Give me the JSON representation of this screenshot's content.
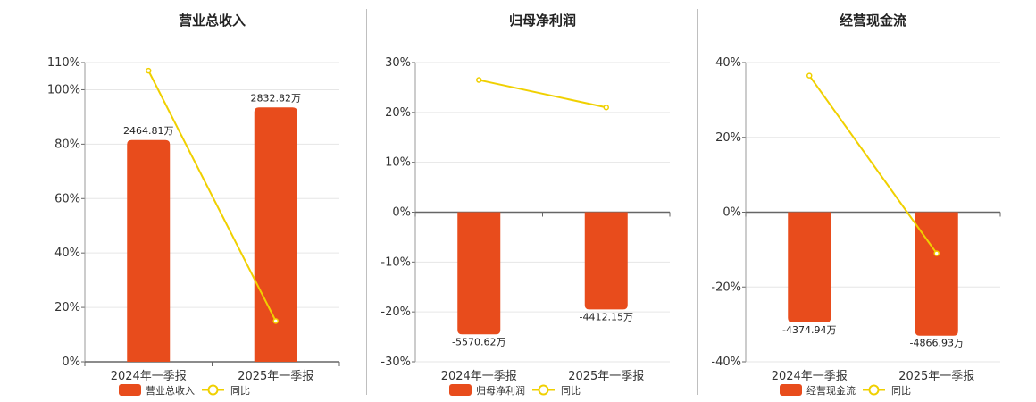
{
  "colors": {
    "bar": "#E84C1C",
    "line": "#F0D000",
    "grid": "#e6e6e6",
    "axis": "#666666"
  },
  "legend_line_label": "同比",
  "chart_data": [
    {
      "type": "bar",
      "title": "营业总收入",
      "categories": [
        "2024年一季报",
        "2025年一季报"
      ],
      "series": [
        {
          "name": "营业总收入",
          "type": "bar",
          "values": [
            81.5,
            93.5
          ],
          "labels": [
            "2464.81万",
            "2832.82万"
          ]
        },
        {
          "name": "同比",
          "type": "line",
          "values": [
            107,
            15
          ]
        }
      ],
      "ylim": [
        0,
        110
      ],
      "ticks": [
        0,
        20,
        40,
        60,
        80,
        100,
        110
      ],
      "tick_labels": [
        "0%",
        "20%",
        "40%",
        "60%",
        "80%",
        "100%",
        "110%"
      ],
      "legend": "bottom"
    },
    {
      "type": "bar",
      "title": "归母净利润",
      "categories": [
        "2024年一季报",
        "2025年一季报"
      ],
      "series": [
        {
          "name": "归母净利润",
          "type": "bar",
          "values": [
            -24.5,
            -19.5
          ],
          "labels": [
            "-5570.62万",
            "-4412.15万"
          ]
        },
        {
          "name": "同比",
          "type": "line",
          "values": [
            26.5,
            21
          ]
        }
      ],
      "ylim": [
        -30,
        30
      ],
      "ticks": [
        -30,
        -20,
        -10,
        0,
        10,
        20,
        30
      ],
      "tick_labels": [
        "-30%",
        "-20%",
        "-10%",
        "0%",
        "10%",
        "20%",
        "30%"
      ],
      "legend": "bottom"
    },
    {
      "type": "bar",
      "title": "经营现金流",
      "categories": [
        "2024年一季报",
        "2025年一季报"
      ],
      "series": [
        {
          "name": "经营现金流",
          "type": "bar",
          "values": [
            -29.5,
            -33
          ],
          "labels": [
            "-4374.94万",
            "-4866.93万"
          ]
        },
        {
          "name": "同比",
          "type": "line",
          "values": [
            36.5,
            -11
          ]
        }
      ],
      "ylim": [
        -40,
        40
      ],
      "ticks": [
        -40,
        -20,
        0,
        20,
        40
      ],
      "tick_labels": [
        "-40%",
        "-20%",
        "0%",
        "20%",
        "40%"
      ],
      "legend": "bottom"
    }
  ]
}
